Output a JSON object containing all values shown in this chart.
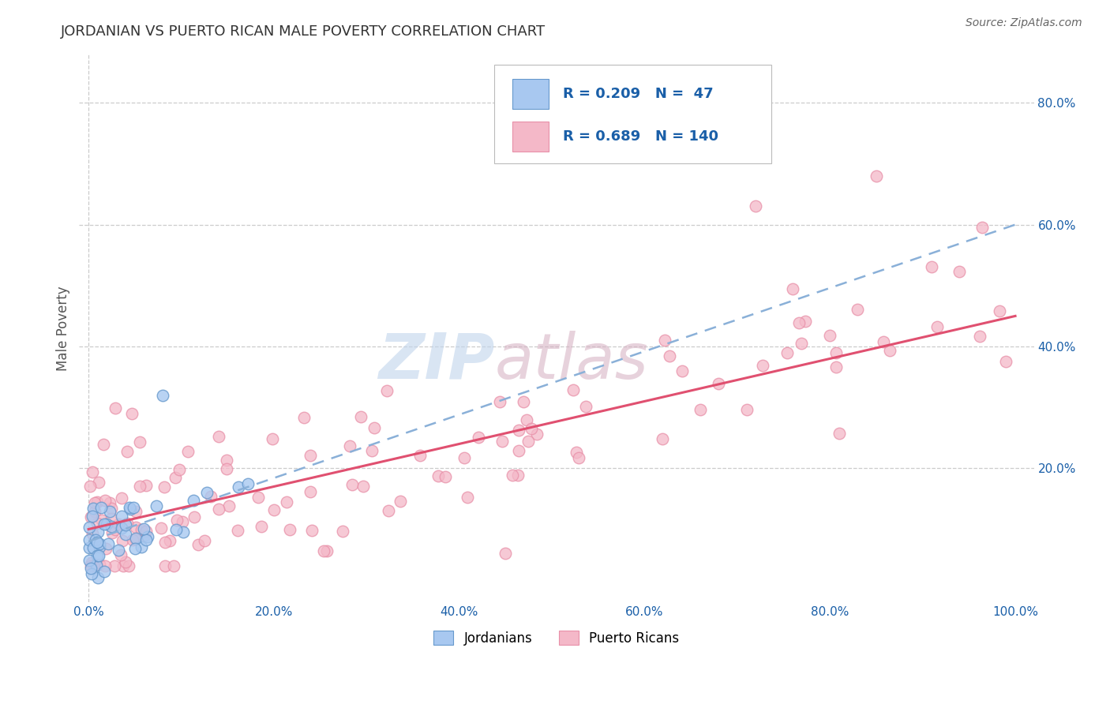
{
  "title": "JORDANIAN VS PUERTO RICAN MALE POVERTY CORRELATION CHART",
  "source": "Source: ZipAtlas.com",
  "ylabel": "Male Poverty",
  "xlim": [
    -0.01,
    1.02
  ],
  "ylim": [
    -0.02,
    0.88
  ],
  "xticks": [
    0.0,
    0.2,
    0.4,
    0.6,
    0.8,
    1.0
  ],
  "xtick_labels": [
    "0.0%",
    "20.0%",
    "40.0%",
    "60.0%",
    "80.0%",
    "100.0%"
  ],
  "right_yticks": [
    0.2,
    0.4,
    0.6,
    0.8
  ],
  "right_ytick_labels": [
    "20.0%",
    "40.0%",
    "60.0%",
    "80.0%"
  ],
  "legend_R1": "0.209",
  "legend_N1": "47",
  "legend_R2": "0.689",
  "legend_N2": "140",
  "color_jordanian_fill": "#a8c8f0",
  "color_jordanian_edge": "#6699cc",
  "color_pr_fill": "#f4b8c8",
  "color_pr_edge": "#e890a8",
  "color_jordanian_line": "#8ab0d8",
  "color_pr_line": "#e05070",
  "color_legend_text": "#1a5fa8",
  "watermark_zip_color": "#c0d4ec",
  "watermark_atlas_color": "#d4aec0",
  "background_color": "#ffffff",
  "grid_color": "#cccccc",
  "title_color": "#333333",
  "source_color": "#666666",
  "jord_line_intercept": 0.08,
  "jord_line_slope": 0.52,
  "pr_line_intercept": 0.1,
  "pr_line_slope": 0.35
}
